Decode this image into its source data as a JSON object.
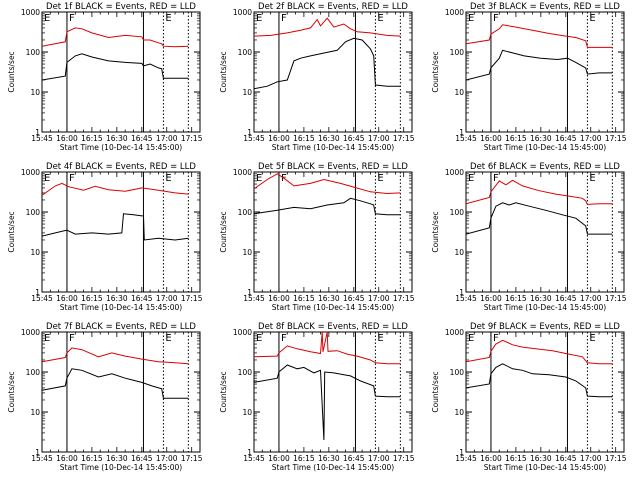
{
  "chart_data": {
    "type": "line",
    "common": {
      "xlabel": "Start Time (10-Dec-14 15:45:00)",
      "ylabel": "Counts/sec",
      "x_ticks": [
        "15:45",
        "16:00",
        "16:15",
        "16:30",
        "16:45",
        "17:00",
        "17:15"
      ],
      "x_range_minutes": [
        0,
        95
      ],
      "ylim": [
        1,
        1000
      ],
      "y_scale": "log",
      "y_ticks": [
        "1",
        "10",
        "100",
        "1000"
      ],
      "series_colors": {
        "events": "#000000",
        "lld": "#dd0000"
      },
      "markers": [
        {
          "label": "F",
          "minute": 15,
          "style": "solid"
        },
        {
          "label": "",
          "minute": 61,
          "style": "solid"
        },
        {
          "label": "E",
          "minute": 73,
          "style": "dotted"
        },
        {
          "label": "",
          "minute": 88,
          "style": "dotted"
        }
      ],
      "left_marker": {
        "label": "E",
        "minute": 0
      }
    },
    "panels": [
      {
        "title": "Det 1f BLACK = Events, RED = LLD",
        "events": [
          [
            0,
            20
          ],
          [
            14,
            25
          ],
          [
            15,
            55
          ],
          [
            20,
            80
          ],
          [
            24,
            90
          ],
          [
            30,
            75
          ],
          [
            40,
            60
          ],
          [
            50,
            55
          ],
          [
            60,
            52
          ],
          [
            61,
            45
          ],
          [
            65,
            50
          ],
          [
            70,
            40
          ],
          [
            72,
            38
          ],
          [
            73,
            22
          ],
          [
            80,
            22
          ],
          [
            88,
            22
          ]
        ],
        "lld": [
          [
            0,
            140
          ],
          [
            14,
            180
          ],
          [
            15,
            320
          ],
          [
            20,
            400
          ],
          [
            24,
            380
          ],
          [
            30,
            300
          ],
          [
            40,
            230
          ],
          [
            50,
            260
          ],
          [
            60,
            240
          ],
          [
            61,
            200
          ],
          [
            65,
            200
          ],
          [
            70,
            170
          ],
          [
            72,
            160
          ],
          [
            73,
            140
          ],
          [
            80,
            135
          ],
          [
            88,
            140
          ]
        ]
      },
      {
        "title": "Det 2f BLACK = Events, RED = LLD",
        "events": [
          [
            0,
            12
          ],
          [
            8,
            14
          ],
          [
            14,
            18
          ],
          [
            20,
            20
          ],
          [
            24,
            60
          ],
          [
            28,
            70
          ],
          [
            34,
            80
          ],
          [
            40,
            90
          ],
          [
            50,
            110
          ],
          [
            55,
            180
          ],
          [
            60,
            220
          ],
          [
            65,
            200
          ],
          [
            70,
            120
          ],
          [
            72,
            80
          ],
          [
            73,
            15
          ],
          [
            80,
            14
          ],
          [
            88,
            14
          ]
        ],
        "lld": [
          [
            0,
            250
          ],
          [
            10,
            260
          ],
          [
            15,
            280
          ],
          [
            20,
            300
          ],
          [
            28,
            350
          ],
          [
            34,
            400
          ],
          [
            38,
            650
          ],
          [
            40,
            450
          ],
          [
            44,
            700
          ],
          [
            48,
            420
          ],
          [
            54,
            500
          ],
          [
            58,
            380
          ],
          [
            62,
            320
          ],
          [
            70,
            300
          ],
          [
            80,
            260
          ],
          [
            88,
            250
          ]
        ]
      },
      {
        "title": "Det 3f BLACK = Events, RED = LLD",
        "events": [
          [
            0,
            20
          ],
          [
            14,
            28
          ],
          [
            15,
            40
          ],
          [
            20,
            70
          ],
          [
            22,
            110
          ],
          [
            28,
            95
          ],
          [
            35,
            80
          ],
          [
            45,
            70
          ],
          [
            55,
            65
          ],
          [
            61,
            70
          ],
          [
            66,
            55
          ],
          [
            72,
            40
          ],
          [
            73,
            28
          ],
          [
            80,
            30
          ],
          [
            88,
            30
          ]
        ],
        "lld": [
          [
            0,
            160
          ],
          [
            14,
            200
          ],
          [
            15,
            280
          ],
          [
            20,
            380
          ],
          [
            22,
            480
          ],
          [
            30,
            420
          ],
          [
            40,
            350
          ],
          [
            50,
            290
          ],
          [
            60,
            250
          ],
          [
            66,
            230
          ],
          [
            72,
            190
          ],
          [
            73,
            130
          ],
          [
            80,
            130
          ],
          [
            88,
            130
          ]
        ]
      },
      {
        "title": "Det 4f BLACK = Events, RED = LLD",
        "events": [
          [
            0,
            25
          ],
          [
            8,
            30
          ],
          [
            15,
            35
          ],
          [
            20,
            28
          ],
          [
            30,
            30
          ],
          [
            40,
            28
          ],
          [
            48,
            30
          ],
          [
            49,
            90
          ],
          [
            55,
            85
          ],
          [
            60,
            80
          ],
          [
            61,
            80
          ],
          [
            61.5,
            20
          ],
          [
            70,
            22
          ],
          [
            80,
            20
          ],
          [
            88,
            22
          ]
        ],
        "lld": [
          [
            0,
            260
          ],
          [
            8,
            450
          ],
          [
            12,
            520
          ],
          [
            16,
            430
          ],
          [
            25,
            350
          ],
          [
            32,
            440
          ],
          [
            40,
            360
          ],
          [
            50,
            330
          ],
          [
            60,
            400
          ],
          [
            70,
            350
          ],
          [
            80,
            300
          ],
          [
            88,
            280
          ]
        ]
      },
      {
        "title": "Det 5f BLACK = Events, RED = LLD",
        "events": [
          [
            0,
            90
          ],
          [
            14,
            110
          ],
          [
            24,
            130
          ],
          [
            34,
            120
          ],
          [
            44,
            150
          ],
          [
            54,
            170
          ],
          [
            58,
            220
          ],
          [
            64,
            190
          ],
          [
            70,
            160
          ],
          [
            72,
            150
          ],
          [
            73,
            90
          ],
          [
            80,
            85
          ],
          [
            88,
            85
          ]
        ],
        "lld": [
          [
            0,
            380
          ],
          [
            8,
            650
          ],
          [
            14,
            900
          ],
          [
            18,
            700
          ],
          [
            24,
            450
          ],
          [
            34,
            520
          ],
          [
            42,
            650
          ],
          [
            52,
            520
          ],
          [
            60,
            420
          ],
          [
            70,
            320
          ],
          [
            80,
            290
          ],
          [
            88,
            300
          ]
        ]
      },
      {
        "title": "Det 6f BLACK = Events, RED = LLD",
        "events": [
          [
            0,
            28
          ],
          [
            14,
            40
          ],
          [
            15,
            70
          ],
          [
            18,
            140
          ],
          [
            22,
            170
          ],
          [
            26,
            150
          ],
          [
            30,
            170
          ],
          [
            38,
            140
          ],
          [
            48,
            110
          ],
          [
            58,
            85
          ],
          [
            66,
            70
          ],
          [
            72,
            45
          ],
          [
            73,
            28
          ],
          [
            80,
            28
          ],
          [
            88,
            28
          ]
        ],
        "lld": [
          [
            0,
            160
          ],
          [
            14,
            230
          ],
          [
            15,
            320
          ],
          [
            20,
            600
          ],
          [
            24,
            480
          ],
          [
            28,
            620
          ],
          [
            34,
            450
          ],
          [
            44,
            340
          ],
          [
            54,
            280
          ],
          [
            62,
            250
          ],
          [
            70,
            220
          ],
          [
            72,
            190
          ],
          [
            73,
            155
          ],
          [
            80,
            160
          ],
          [
            88,
            160
          ]
        ]
      },
      {
        "title": "Det 7f BLACK = Events, RED = LLD",
        "events": [
          [
            0,
            35
          ],
          [
            14,
            45
          ],
          [
            15,
            70
          ],
          [
            18,
            120
          ],
          [
            24,
            110
          ],
          [
            34,
            75
          ],
          [
            42,
            90
          ],
          [
            50,
            70
          ],
          [
            60,
            55
          ],
          [
            66,
            45
          ],
          [
            72,
            38
          ],
          [
            73,
            22
          ],
          [
            80,
            22
          ],
          [
            88,
            22
          ]
        ],
        "lld": [
          [
            0,
            180
          ],
          [
            14,
            230
          ],
          [
            15,
            300
          ],
          [
            18,
            400
          ],
          [
            24,
            360
          ],
          [
            34,
            240
          ],
          [
            42,
            300
          ],
          [
            50,
            250
          ],
          [
            60,
            210
          ],
          [
            70,
            180
          ],
          [
            80,
            170
          ],
          [
            88,
            160
          ]
        ]
      },
      {
        "title": "Det 8f BLACK = Events, RED = LLD",
        "events": [
          [
            0,
            55
          ],
          [
            14,
            70
          ],
          [
            15,
            100
          ],
          [
            20,
            150
          ],
          [
            26,
            120
          ],
          [
            30,
            130
          ],
          [
            36,
            95
          ],
          [
            40,
            110
          ],
          [
            42,
            2
          ],
          [
            42.5,
            100
          ],
          [
            48,
            95
          ],
          [
            54,
            85
          ],
          [
            58,
            80
          ],
          [
            64,
            60
          ],
          [
            72,
            45
          ],
          [
            73,
            25
          ],
          [
            80,
            24
          ],
          [
            88,
            24
          ]
        ],
        "lld": [
          [
            0,
            240
          ],
          [
            14,
            250
          ],
          [
            15,
            300
          ],
          [
            20,
            450
          ],
          [
            26,
            380
          ],
          [
            34,
            320
          ],
          [
            40,
            290
          ],
          [
            41,
            1000
          ],
          [
            41.5,
            320
          ],
          [
            44,
            1000
          ],
          [
            44.5,
            330
          ],
          [
            50,
            340
          ],
          [
            56,
            280
          ],
          [
            62,
            250
          ],
          [
            70,
            200
          ],
          [
            73,
            170
          ],
          [
            80,
            160
          ],
          [
            88,
            160
          ]
        ]
      },
      {
        "title": "Det 9f BLACK = Events, RED = LLD",
        "events": [
          [
            0,
            40
          ],
          [
            14,
            50
          ],
          [
            15,
            90
          ],
          [
            18,
            130
          ],
          [
            22,
            160
          ],
          [
            28,
            120
          ],
          [
            34,
            110
          ],
          [
            40,
            90
          ],
          [
            50,
            85
          ],
          [
            60,
            75
          ],
          [
            66,
            60
          ],
          [
            72,
            40
          ],
          [
            73,
            25
          ],
          [
            80,
            24
          ],
          [
            88,
            24
          ]
        ],
        "lld": [
          [
            0,
            180
          ],
          [
            14,
            230
          ],
          [
            15,
            330
          ],
          [
            18,
            500
          ],
          [
            22,
            620
          ],
          [
            28,
            480
          ],
          [
            34,
            420
          ],
          [
            42,
            380
          ],
          [
            52,
            340
          ],
          [
            60,
            290
          ],
          [
            70,
            240
          ],
          [
            73,
            170
          ],
          [
            80,
            160
          ],
          [
            88,
            160
          ]
        ]
      }
    ]
  }
}
